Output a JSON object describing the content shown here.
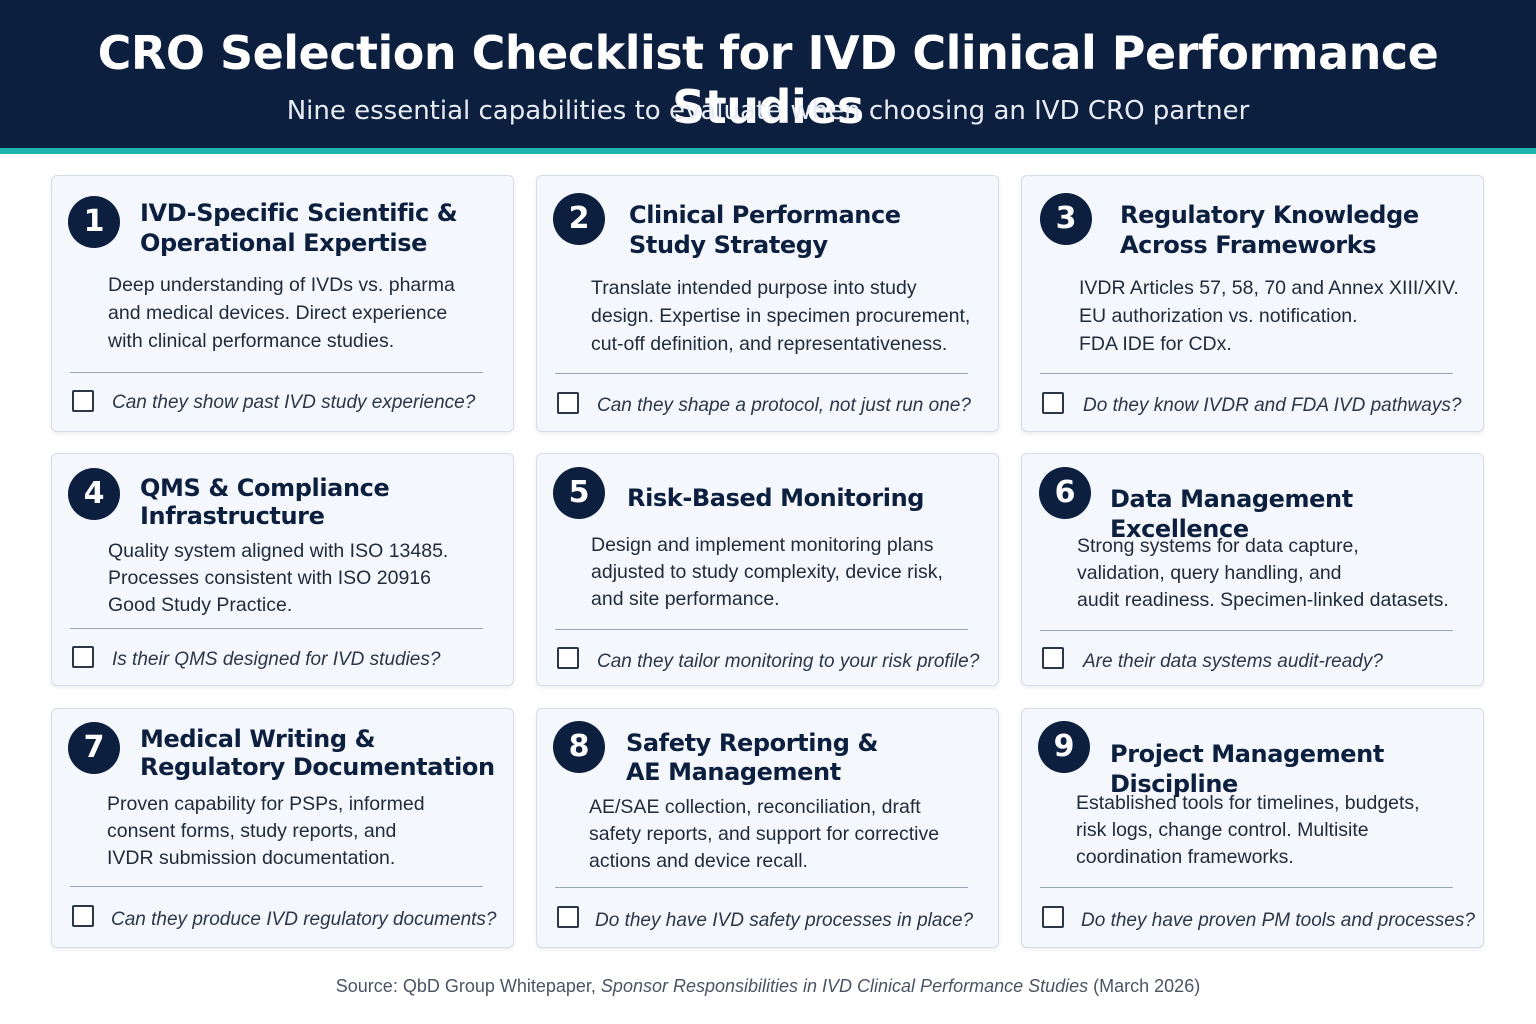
{
  "header": {
    "title": "CRO Selection Checklist for IVD Clinical Performance Studies",
    "subtitle": "Nine essential capabilities to evaluate when choosing an IVD CRO partner"
  },
  "colors": {
    "navy": "#0c1f3f",
    "teal_accent": "#1fb3b0",
    "card_bg": "#f4f7fb"
  },
  "cards": [
    {
      "number": "1",
      "title_lines": [
        "IVD-Specific Scientific &",
        "Operational Expertise"
      ],
      "desc_lines": [
        "Deep understanding of IVDs vs. pharma",
        "and medical devices. Direct experience",
        "with clinical performance studies."
      ],
      "question": "Can they show past IVD study experience?"
    },
    {
      "number": "2",
      "title_lines": [
        "Clinical Performance",
        "Study Strategy"
      ],
      "desc_lines": [
        "Translate intended purpose into study",
        "design. Expertise in specimen procurement,",
        "cut-off definition, and representativeness."
      ],
      "question": "Can they shape a protocol, not just run one?"
    },
    {
      "number": "3",
      "title_lines": [
        "Regulatory Knowledge",
        "Across Frameworks"
      ],
      "desc_lines": [
        "IVDR Articles 57, 58, 70 and Annex XIII/XIV.",
        "EU authorization vs. notification.",
        "FDA IDE for CDx."
      ],
      "question": "Do they know IVDR and FDA IVD pathways?"
    },
    {
      "number": "4",
      "title_lines": [
        "QMS & Compliance",
        "Infrastructure"
      ],
      "desc_lines": [
        "Quality system aligned with ISO 13485.",
        "Processes consistent with ISO 20916",
        "Good Study Practice."
      ],
      "question": "Is their QMS designed for IVD studies?"
    },
    {
      "number": "5",
      "title_lines": [
        "Risk-Based Monitoring"
      ],
      "desc_lines": [
        "Design and implement monitoring plans",
        "adjusted to study complexity, device risk,",
        "and site performance."
      ],
      "question": "Can they tailor monitoring to your risk profile?"
    },
    {
      "number": "6",
      "title_lines": [
        "Data Management Excellence"
      ],
      "desc_lines": [
        "Strong systems for data capture,",
        "validation, query handling, and",
        "audit readiness. Specimen-linked datasets."
      ],
      "question": "Are their data systems audit-ready?"
    },
    {
      "number": "7",
      "title_lines": [
        "Medical Writing &",
        "Regulatory Documentation"
      ],
      "desc_lines": [
        "Proven capability for PSPs, informed",
        "consent forms, study reports, and",
        "IVDR submission documentation."
      ],
      "question": "Can they produce IVD regulatory documents?"
    },
    {
      "number": "8",
      "title_lines": [
        "Safety Reporting &",
        "AE Management"
      ],
      "desc_lines": [
        "AE/SAE collection, reconciliation, draft",
        "safety reports, and support for corrective",
        "actions and device recall."
      ],
      "question": "Do they have IVD safety processes in place?"
    },
    {
      "number": "9",
      "title_lines": [
        "Project Management Discipline"
      ],
      "desc_lines": [
        "Established tools for timelines, budgets,",
        "risk logs, change control. Multisite",
        "coordination frameworks."
      ],
      "question": "Do they have proven PM tools and processes?"
    }
  ],
  "source": {
    "prefix": "Source: QbD Group Whitepaper, ",
    "publication": "Sponsor Responsibilities in IVD Clinical Performance Studies",
    "suffix": " (March 2026)"
  }
}
